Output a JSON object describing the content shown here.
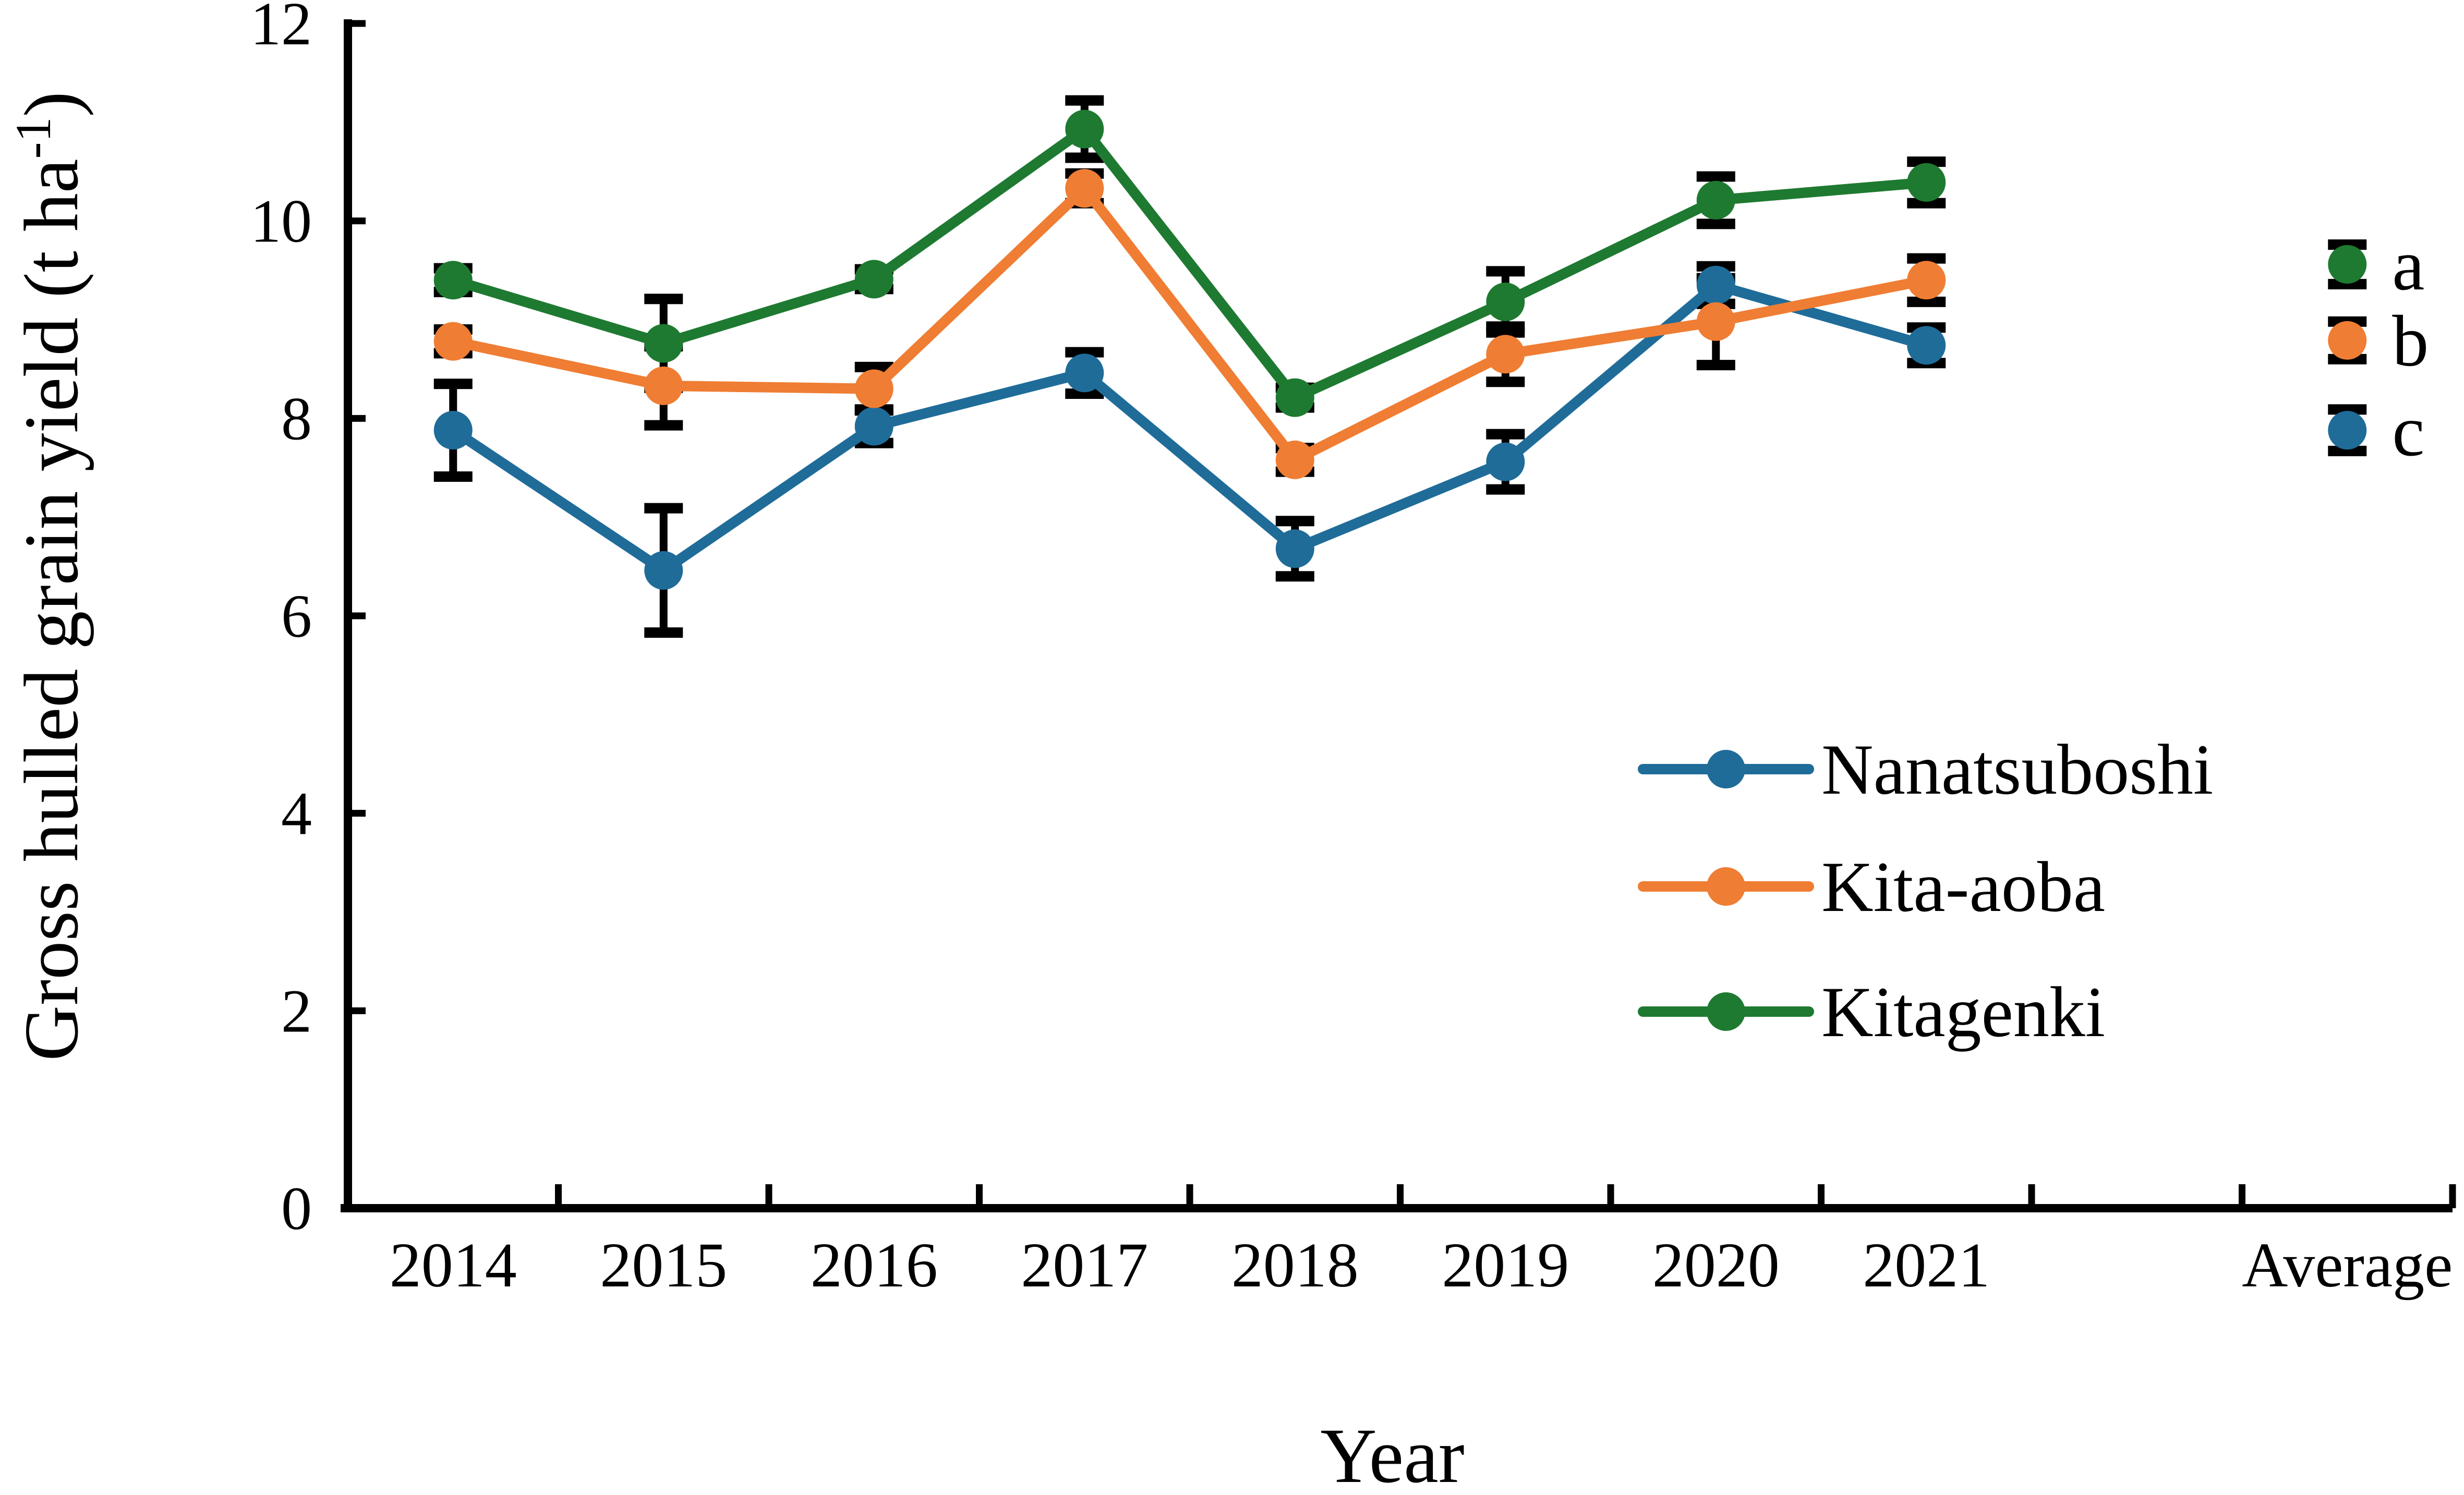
{
  "chart_data": {
    "type": "line",
    "title": "",
    "xlabel": "Year",
    "ylabel_prefix": "Gross hulled grain yield (t ha",
    "ylabel_superscript": "-1",
    "ylabel_suffix": ")",
    "categories": [
      "2014",
      "2015",
      "2016",
      "2017",
      "2018",
      "2019",
      "2020",
      "2021",
      "Average"
    ],
    "ylim": [
      0,
      12
    ],
    "yticks": [
      "0",
      "2",
      "4",
      "6",
      "8",
      "10",
      "12"
    ],
    "grid": "off",
    "axis_color": "#000000",
    "background_color": "#ffffff",
    "legend_position": "inside-lower-right",
    "series": [
      {
        "name": "Nanatsuboshi",
        "color": "#1f6c99",
        "letter": "c",
        "values": [
          7.88,
          6.46,
          7.92,
          8.46,
          6.68,
          7.56,
          9.35,
          8.74
        ],
        "errors": [
          0.47,
          0.63,
          0.17,
          0.21,
          0.28,
          0.28,
          0.19,
          0.18
        ],
        "average": 7.88,
        "average_error": 0.21
      },
      {
        "name": "Kita-aoba",
        "color": "#ef7d33",
        "letter": "b",
        "values": [
          8.78,
          8.33,
          8.3,
          10.33,
          7.58,
          8.65,
          8.98,
          9.4
        ],
        "errors": [
          0.12,
          0.4,
          0.22,
          0.15,
          0.12,
          0.28,
          0.44,
          0.22
        ],
        "average": 8.79,
        "average_error": 0.19
      },
      {
        "name": "Kitagenki",
        "color": "#1e7a31",
        "letter": "a",
        "values": [
          9.4,
          8.76,
          9.41,
          10.93,
          8.21,
          9.18,
          10.21,
          10.39
        ],
        "errors": [
          0.12,
          0.45,
          0.1,
          0.29,
          0.1,
          0.31,
          0.24,
          0.21
        ],
        "average": 9.56,
        "average_error": 0.2
      }
    ],
    "significance_letters_note": "letters a, b, c printed beside the Average points"
  }
}
